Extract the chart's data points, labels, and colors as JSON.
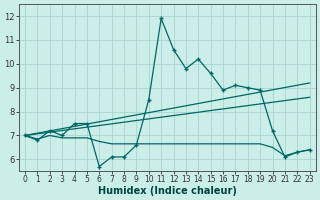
{
  "xlabel": "Humidex (Indice chaleur)",
  "background_color": "#cceee8",
  "grid_color": "#aad4ce",
  "line_color": "#006666",
  "xlim": [
    -0.5,
    23.5
  ],
  "ylim": [
    5.5,
    12.5
  ],
  "xticks": [
    0,
    1,
    2,
    3,
    4,
    5,
    6,
    7,
    8,
    9,
    10,
    11,
    12,
    13,
    14,
    15,
    16,
    17,
    18,
    19,
    20,
    21,
    22,
    23
  ],
  "yticks": [
    6,
    7,
    8,
    9,
    10,
    11,
    12
  ],
  "series1_x": [
    0,
    1,
    2,
    3,
    4,
    5,
    6,
    7,
    8,
    9,
    10,
    11,
    12,
    13,
    14,
    15,
    16,
    17,
    18,
    19,
    20,
    21,
    22,
    23
  ],
  "series1_y": [
    7.0,
    6.8,
    7.2,
    7.0,
    7.5,
    7.5,
    5.7,
    6.1,
    6.1,
    6.6,
    8.5,
    11.9,
    10.6,
    9.8,
    10.2,
    9.6,
    8.9,
    9.1,
    9.0,
    8.9,
    7.2,
    6.1,
    6.3,
    6.4
  ],
  "series2_x": [
    0,
    23
  ],
  "series2_y": [
    7.0,
    8.6
  ],
  "series3_x": [
    0,
    23
  ],
  "series3_y": [
    7.0,
    9.2
  ],
  "series4_x": [
    0,
    1,
    2,
    3,
    4,
    5,
    6,
    7,
    8,
    9,
    10,
    11,
    12,
    13,
    14,
    15,
    16,
    17,
    18,
    19,
    20,
    21,
    22,
    23
  ],
  "series4_y": [
    7.0,
    6.85,
    7.0,
    6.9,
    6.9,
    6.9,
    6.75,
    6.65,
    6.65,
    6.65,
    6.65,
    6.65,
    6.65,
    6.65,
    6.65,
    6.65,
    6.65,
    6.65,
    6.65,
    6.65,
    6.5,
    6.15,
    6.3,
    6.4
  ],
  "xlabel_fontsize": 7,
  "tick_fontsize": 5.5
}
